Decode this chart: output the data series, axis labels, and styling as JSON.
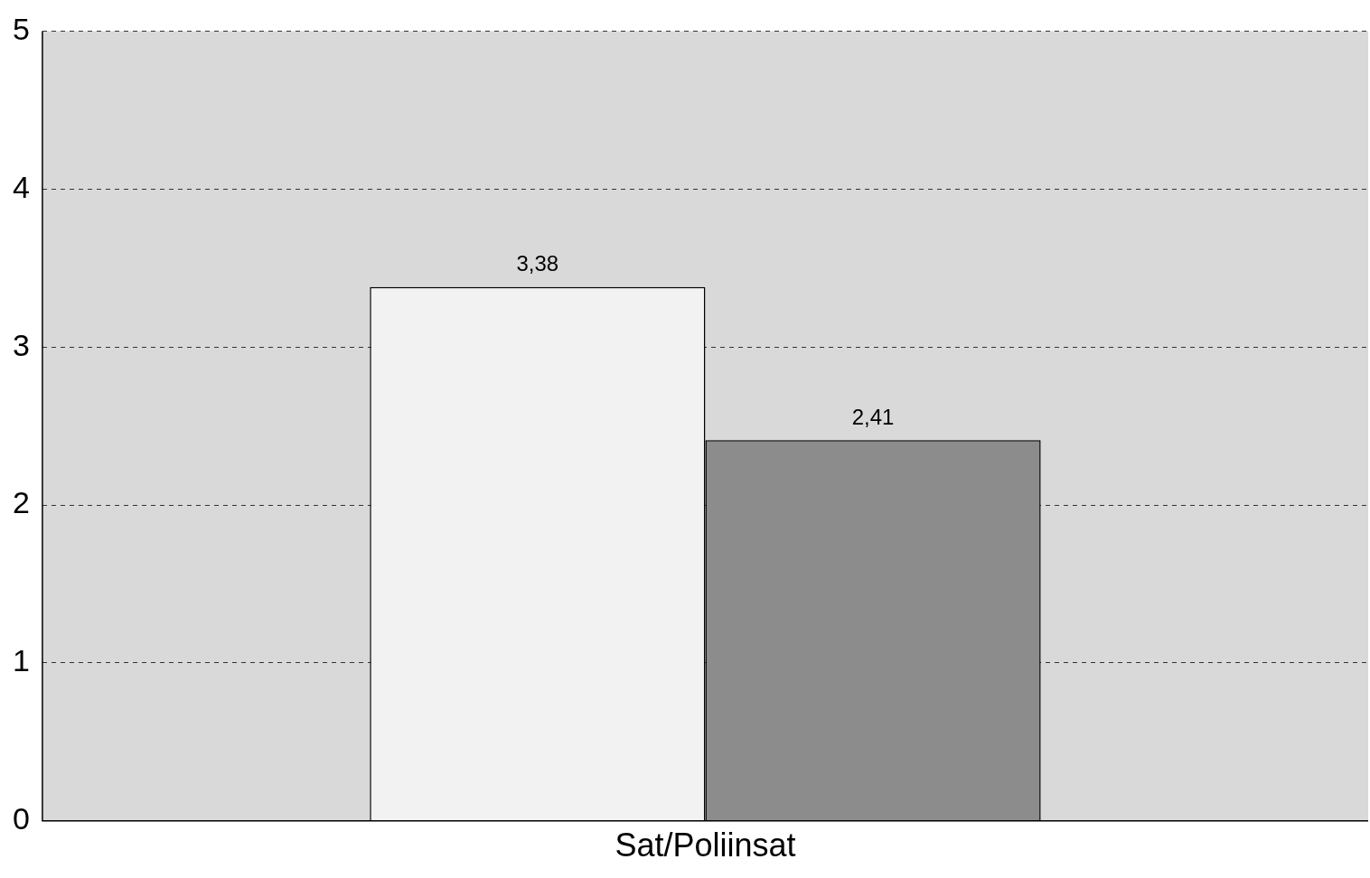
{
  "chart_data": {
    "type": "bar",
    "categories": [
      "Sat/Poliinsat"
    ],
    "series": [
      {
        "color": "#f2f2f2",
        "values": [
          3.38
        ],
        "value_labels": [
          "3,38"
        ]
      },
      {
        "color": "#8c8c8c",
        "values": [
          2.41
        ],
        "value_labels": [
          "2,41"
        ]
      }
    ],
    "ylim": [
      0,
      5
    ],
    "yticks": [
      0,
      1,
      2,
      3,
      4,
      5
    ],
    "grid": "y",
    "legend": false
  }
}
